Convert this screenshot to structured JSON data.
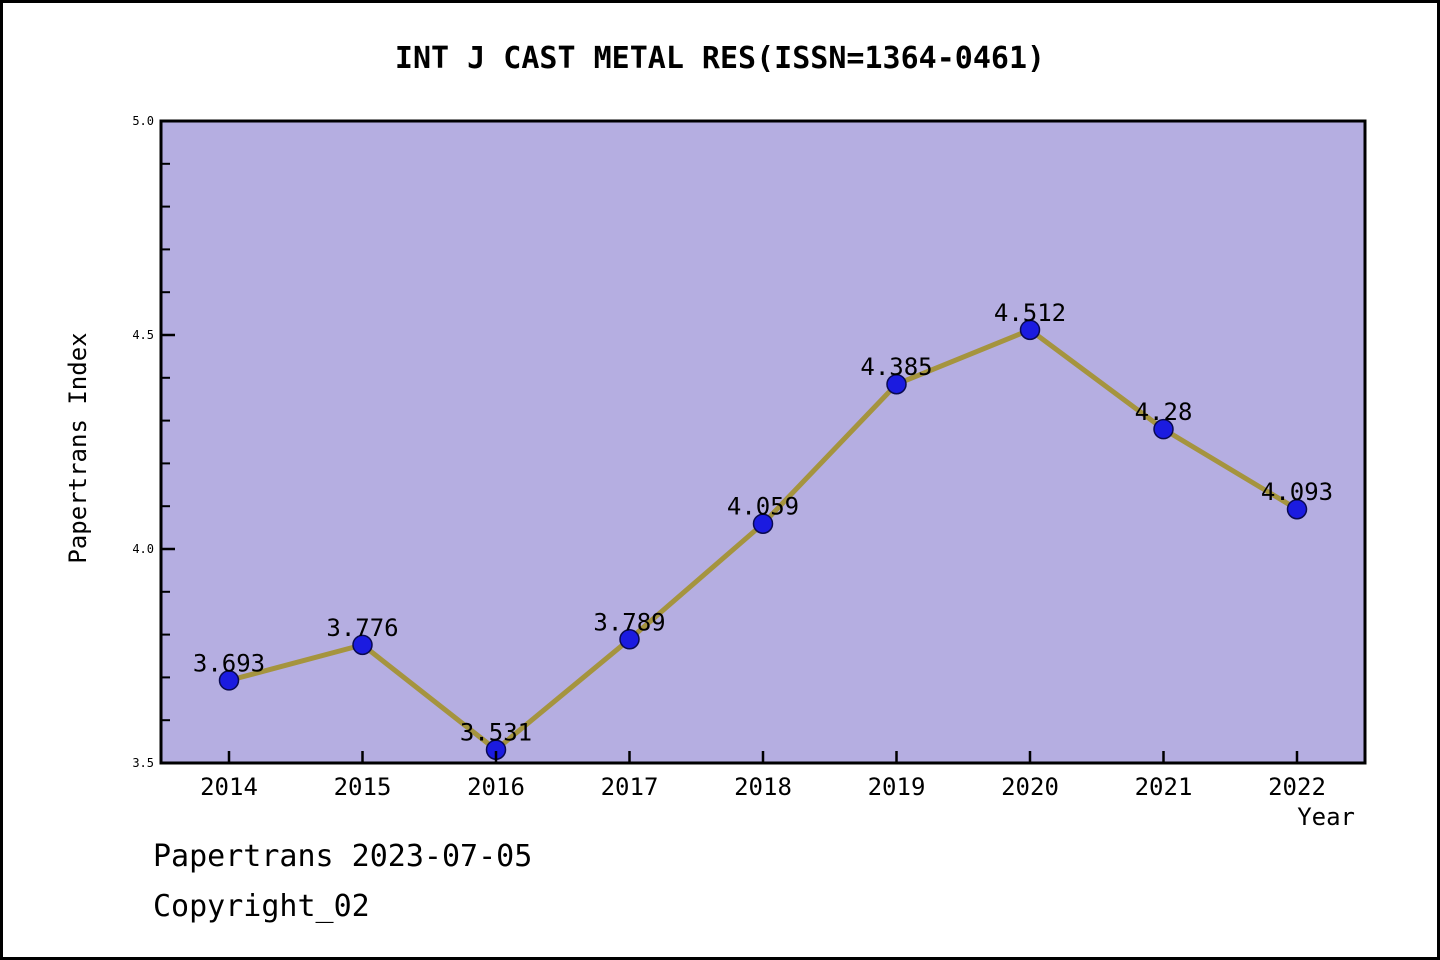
{
  "figure": {
    "background": "#ffffff",
    "border_color": "#000000"
  },
  "footer": {
    "line1": "Papertrans 2023-07-05",
    "line2": "Copyright_02"
  },
  "chart_data": {
    "type": "line",
    "title": "INT J CAST METAL RES(ISSN=1364-0461)",
    "xlabel": "Year",
    "ylabel": "Papertrans Index",
    "categories": [
      "2014",
      "2015",
      "2016",
      "2017",
      "2018",
      "2019",
      "2020",
      "2021",
      "2022"
    ],
    "series": [
      {
        "name": "Papertrans Index",
        "values": [
          3.693,
          3.776,
          3.531,
          3.789,
          4.059,
          4.385,
          4.512,
          4.28,
          4.093
        ],
        "point_labels": [
          "3.693",
          "3.776",
          "3.531",
          "3.789",
          "4.059",
          "4.385",
          "4.512",
          "4.28",
          "4.093"
        ]
      }
    ],
    "ylim": [
      3.5,
      5.0
    ],
    "y_major_ticks": [
      3.5,
      4.0,
      4.5,
      5.0
    ],
    "y_major_tick_labels": [
      "3.5",
      "4.0",
      "4.5",
      "5.0"
    ],
    "y_minor_step": 0.1,
    "grid": false,
    "legend": null,
    "style": {
      "plot_bg": "#b5aee1",
      "line_color": "#a5943e",
      "marker_color": "#1b1be0",
      "marker_edge": "#0a0a50",
      "axis_color": "#000000",
      "text_color": "#000000"
    }
  }
}
